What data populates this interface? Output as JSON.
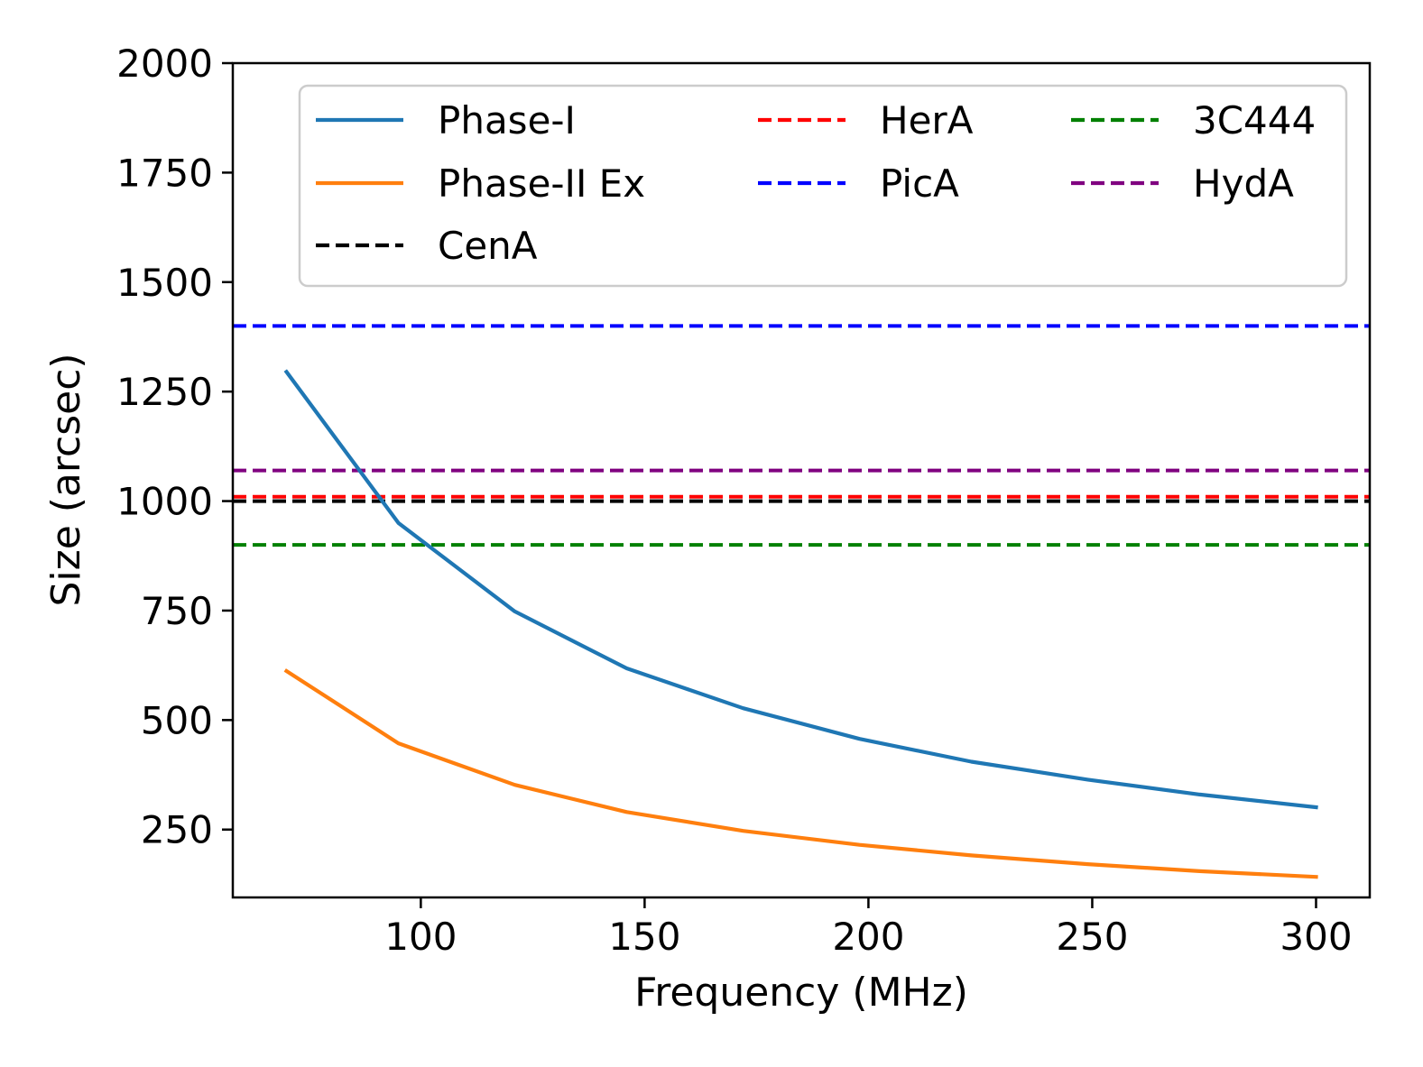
{
  "chart_data": {
    "type": "line",
    "xlabel": "Frequency (MHz)",
    "ylabel": "Size (arcsec)",
    "xlim": [
      58,
      312
    ],
    "ylim": [
      95,
      2000
    ],
    "xticks": [
      100,
      150,
      200,
      250,
      300
    ],
    "yticks": [
      250,
      500,
      750,
      1000,
      1250,
      1500,
      1750,
      2000
    ],
    "grid": false,
    "legend_placement": "top",
    "legend_columns": 3,
    "series": [
      {
        "name": "Phase-I",
        "style": "solid",
        "color": "#1f77b4",
        "x": [
          70,
          95,
          121,
          146,
          172,
          198,
          223,
          249,
          274,
          300
        ],
        "y": [
          1295,
          950,
          748,
          618,
          527,
          457,
          405,
          364,
          330,
          301
        ]
      },
      {
        "name": "Phase-II Ex",
        "style": "solid",
        "color": "#ff7f0e",
        "x": [
          70,
          95,
          121,
          146,
          172,
          198,
          223,
          249,
          274,
          300
        ],
        "y": [
          612,
          447,
          352,
          290,
          247,
          215,
          191,
          171,
          155,
          142
        ]
      },
      {
        "name": "CenA",
        "style": "dashed",
        "color": "#000000",
        "hline": 1000
      },
      {
        "name": "HerA",
        "style": "dashed",
        "color": "#ff0000",
        "hline": 1010
      },
      {
        "name": "PicA",
        "style": "dashed",
        "color": "#0000ff",
        "hline": 1400
      },
      {
        "name": "3C444",
        "style": "dashed",
        "color": "#008000",
        "hline": 900
      },
      {
        "name": "HydA",
        "style": "dashed",
        "color": "#800080",
        "hline": 1070
      }
    ],
    "legend_order": [
      "Phase-I",
      "HerA",
      "3C444",
      "Phase-II Ex",
      "PicA",
      "HydA",
      "CenA"
    ]
  }
}
